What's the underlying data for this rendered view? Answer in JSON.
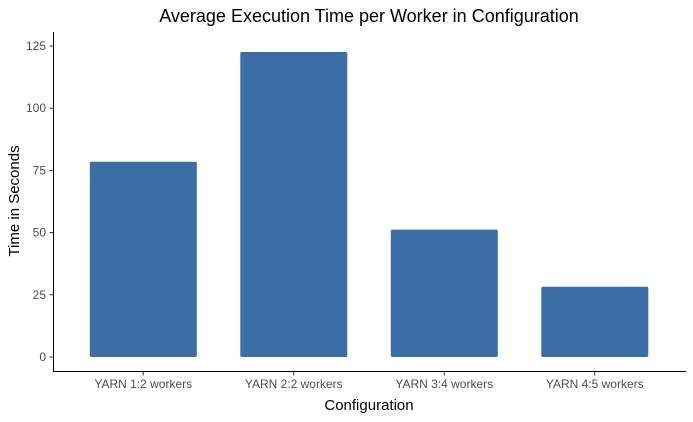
{
  "chart_data": {
    "type": "bar",
    "title": "Average Execution Time per Worker in Configuration",
    "xlabel": "Configuration",
    "ylabel": "Time in Seconds",
    "categories": [
      "YARN 1:2 workers",
      "YARN 2:2 workers",
      "YARN 3:4 workers",
      "YARN 4:5 workers"
    ],
    "values": [
      78.5,
      122.6,
      51.2,
      28.2
    ],
    "yticks": [
      0,
      25,
      50,
      75,
      100,
      125
    ],
    "ylim": [
      0,
      125
    ],
    "grid": false,
    "legend": "none",
    "bar_color": "#3A6EA5"
  }
}
